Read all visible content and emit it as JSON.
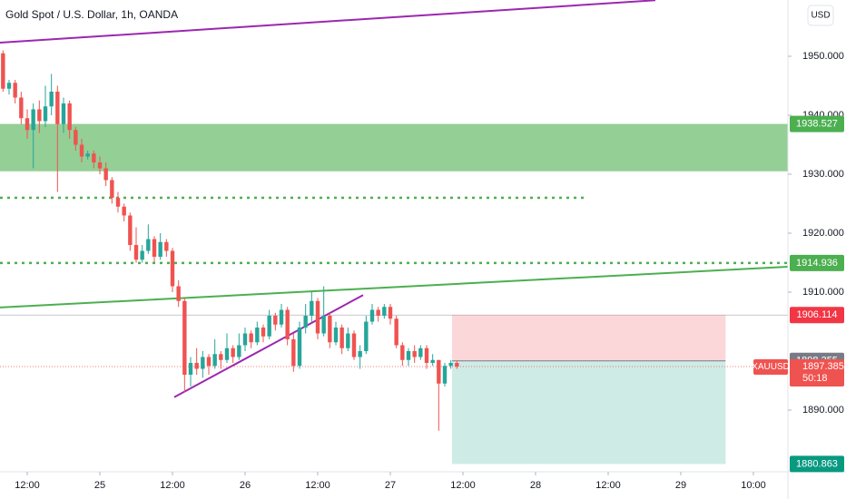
{
  "chart_data": {
    "type": "candlestick",
    "title": "Gold Spot / U.S. Dollar, 1h, OANDA",
    "currency": "USD",
    "symbol": "XAUUSD",
    "countdown": "50:18",
    "up_color": "#26a69a",
    "down_color": "#ef5350",
    "xlim": [
      7.5,
      137.7
    ],
    "ylim": [
      1879.54,
      1959.54
    ],
    "yticks": [
      {
        "value": 1950,
        "label": "1950.000"
      },
      {
        "value": 1940,
        "label": "1940.000"
      },
      {
        "value": 1930,
        "label": "1930.000"
      },
      {
        "value": 1920,
        "label": "1920.000"
      },
      {
        "value": 1910,
        "label": "1910.000"
      },
      {
        "value": 1890,
        "label": "1890.000"
      }
    ],
    "xticks": [
      {
        "value": 12,
        "label": "12:00"
      },
      {
        "value": 24,
        "label": "25"
      },
      {
        "value": 36,
        "label": "12:00"
      },
      {
        "value": 48,
        "label": "26"
      },
      {
        "value": 60,
        "label": "12:00"
      },
      {
        "value": 72,
        "label": "27"
      },
      {
        "value": 84,
        "label": "12:00"
      },
      {
        "value": 96,
        "label": "28"
      },
      {
        "value": 108,
        "label": "12:00"
      },
      {
        "value": 120,
        "label": "29"
      },
      {
        "value": 132,
        "label": "10:00"
      }
    ],
    "x": [
      8,
      9,
      10,
      11,
      12,
      13,
      14,
      15,
      16,
      17,
      18,
      19,
      20,
      21,
      22,
      23,
      24,
      25,
      26,
      27,
      28,
      29,
      30,
      31,
      32,
      33,
      34,
      35,
      36,
      37,
      38,
      39,
      40,
      41,
      42,
      43,
      44,
      45,
      46,
      47,
      48,
      49,
      50,
      51,
      52,
      53,
      54,
      55,
      56,
      57,
      58,
      59,
      60,
      61,
      62,
      63,
      64,
      65,
      66,
      67,
      68,
      69,
      70,
      71,
      72,
      73,
      74,
      75,
      76,
      77,
      78,
      79,
      80,
      81,
      82,
      83
    ],
    "open": [
      1950.5,
      1944.5,
      1945.5,
      1943,
      1939.5,
      1937.5,
      1941,
      1939,
      1941.5,
      1944,
      1938.5,
      1942,
      1937.5,
      1935,
      1933,
      1933.5,
      1932,
      1931,
      1929,
      1926,
      1924.5,
      1923,
      1918,
      1915.5,
      1917,
      1919,
      1916,
      1918.5,
      1917,
      1911,
      1908.5,
      1896,
      1898,
      1897,
      1899,
      1897.5,
      1899.5,
      1898.5,
      1900.5,
      1899,
      1901,
      1903,
      1901.5,
      1904,
      1902.5,
      1906,
      1904.5,
      1907,
      1902,
      1897.5,
      1904,
      1906,
      1908.5,
      1903,
      1906,
      1901.5,
      1904,
      1900.5,
      1903,
      1899,
      1900,
      1905,
      1907,
      1906,
      1907.5,
      1905.5,
      1901,
      1898.5,
      1900,
      1899,
      1900.5,
      1898,
      1898.5,
      1894.5,
      1897.5,
      1898
    ],
    "high": [
      1951,
      1946,
      1946,
      1944,
      1941,
      1942,
      1942.5,
      1945,
      1947,
      1945,
      1943,
      1942.5,
      1938,
      1936,
      1934,
      1934,
      1933,
      1932,
      1929.5,
      1927,
      1925,
      1923.5,
      1921,
      1918,
      1921.5,
      1919.5,
      1920,
      1919,
      1917.5,
      1912,
      1909,
      1899,
      1900.5,
      1900,
      1899.5,
      1902,
      1900,
      1903,
      1901,
      1903,
      1904,
      1903.5,
      1905,
      1904.5,
      1907,
      1906.5,
      1908,
      1907.5,
      1903,
      1905,
      1908,
      1910,
      1909,
      1911,
      1906.5,
      1905,
      1904.5,
      1904,
      1903.5,
      1901,
      1906,
      1908,
      1907.5,
      1908,
      1908,
      1906,
      1901.5,
      1900.5,
      1901,
      1901,
      1901,
      1899.5,
      1898.5,
      1898,
      1898.5,
      1898.355
    ],
    "low": [
      1944,
      1943.5,
      1942,
      1938.5,
      1936,
      1931,
      1937,
      1938,
      1940,
      1927,
      1937,
      1936,
      1934,
      1932,
      1932.5,
      1931,
      1930,
      1928,
      1925,
      1923.5,
      1922,
      1917,
      1915,
      1915,
      1916.5,
      1915,
      1915.5,
      1916,
      1910,
      1907.5,
      1893,
      1894,
      1896,
      1895.5,
      1896,
      1897,
      1897,
      1898,
      1898,
      1898.5,
      1900,
      1900.5,
      1901,
      1901.5,
      1902,
      1903.5,
      1904,
      1901,
      1896.5,
      1897,
      1903,
      1905,
      1902,
      1902.5,
      1900.5,
      1901,
      1899.5,
      1900,
      1898.5,
      1897,
      1899.5,
      1904.5,
      1905,
      1905.5,
      1904.5,
      1900.5,
      1897.5,
      1897.5,
      1898,
      1898.5,
      1897,
      1897.5,
      1886.5,
      1894,
      1897,
      1897
    ],
    "close": [
      1944.5,
      1945.5,
      1943,
      1939.5,
      1937.5,
      1941,
      1939,
      1941.5,
      1944,
      1938.5,
      1942,
      1937.5,
      1935,
      1933,
      1933.5,
      1932,
      1931,
      1929,
      1926,
      1924.5,
      1923,
      1918,
      1915.5,
      1917,
      1919,
      1916,
      1918.5,
      1917,
      1911,
      1908.5,
      1896,
      1898,
      1897,
      1899,
      1897.5,
      1899.5,
      1898.5,
      1900.5,
      1899,
      1901,
      1903,
      1901.5,
      1904,
      1902.5,
      1906,
      1904.5,
      1907,
      1902,
      1897.5,
      1904,
      1906,
      1908.5,
      1903,
      1906,
      1901.5,
      1904,
      1900.5,
      1903,
      1899,
      1900,
      1905,
      1907,
      1906,
      1907.5,
      1905.5,
      1901,
      1898.5,
      1900,
      1899,
      1900.5,
      1898,
      1898.5,
      1894.5,
      1897.5,
      1898,
      1897.385
    ],
    "zones": [
      {
        "top": 1938.527,
        "bottom": 1930.5,
        "color": "#4caf50"
      }
    ],
    "hlines": [
      {
        "price": 1926,
        "x0": 7.5,
        "x1": 104.2,
        "color": "#4caf50"
      },
      {
        "price": 1914.936,
        "x0": 7.5,
        "x1": 137.7,
        "color": "#4caf50"
      }
    ],
    "trendlines": [
      {
        "x": [
          7.5,
          115.8
        ],
        "y": [
          1952.3,
          1959.5
        ],
        "color": "#9c27b0"
      },
      {
        "x": [
          7.5,
          137.7
        ],
        "y": [
          1907.4,
          1914.3
        ],
        "color": "#4caf50"
      },
      {
        "x": [
          36.3,
          67.5
        ],
        "y": [
          1892.2,
          1909.5
        ],
        "color": "#9c27b0"
      }
    ],
    "position": {
      "x0": 82.2,
      "x1": 127.4,
      "entry": 1898.355,
      "stop": 1906.114,
      "target": 1880.863,
      "entry_color": "#787b86",
      "stop_color": "#f23645",
      "target_color": "#089981"
    }
  }
}
